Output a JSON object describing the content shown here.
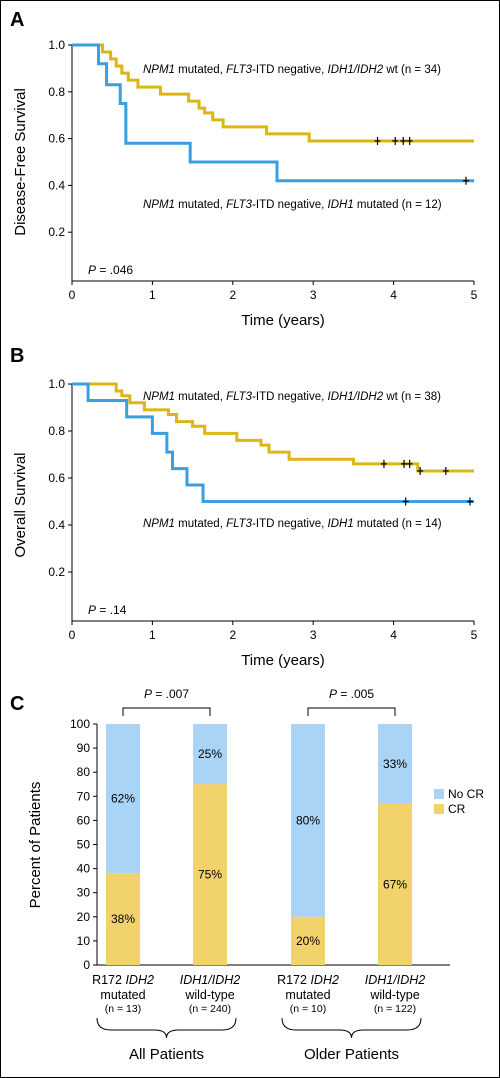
{
  "panels": {
    "a": {
      "letter": "A"
    },
    "b": {
      "letter": "B"
    },
    "c": {
      "letter": "C"
    }
  },
  "chart_data": [
    {
      "type": "line",
      "step": true,
      "ylabel": "Disease-Free Survival",
      "xlabel": "Time (years)",
      "xlim": [
        0,
        5
      ],
      "ylim": [
        0,
        1.0
      ],
      "x_ticks": [
        0,
        1,
        2,
        3,
        4,
        5
      ],
      "y_ticks": [
        0.2,
        0.4,
        0.6,
        0.8,
        1.0
      ],
      "y_tick_labels": [
        "0.2",
        "0.4",
        "0.6",
        "0.8",
        "1.0"
      ],
      "p_value": {
        "label": "P",
        "text": " = .046"
      },
      "series": [
        {
          "color": "#dcb714",
          "annotation": [
            [
              "NPM1",
              true
            ],
            [
              " mutated, ",
              false
            ],
            [
              "FLT3",
              true
            ],
            [
              "-ITD negative, ",
              false
            ],
            [
              "IDH1/IDH2",
              true
            ],
            [
              " wt (n = 34)",
              false
            ]
          ],
          "points": [
            [
              0,
              1.0
            ],
            [
              0.38,
              0.97
            ],
            [
              0.48,
              0.94
            ],
            [
              0.55,
              0.91
            ],
            [
              0.62,
              0.88
            ],
            [
              0.7,
              0.85
            ],
            [
              0.82,
              0.82
            ],
            [
              1.1,
              0.79
            ],
            [
              1.45,
              0.76
            ],
            [
              1.58,
              0.73
            ],
            [
              1.65,
              0.71
            ],
            [
              1.75,
              0.68
            ],
            [
              1.88,
              0.65
            ],
            [
              2.42,
              0.62
            ],
            [
              2.95,
              0.59
            ],
            [
              5.0,
              0.59
            ]
          ],
          "censored": [
            3.8,
            4.02,
            4.12,
            4.2
          ]
        },
        {
          "color": "#3a9fe0",
          "annotation": [
            [
              "NPM1",
              true
            ],
            [
              " mutated, ",
              false
            ],
            [
              "FLT3",
              true
            ],
            [
              "-ITD negative, ",
              false
            ],
            [
              "IDH1",
              true
            ],
            [
              " mutated (n = 12)",
              false
            ]
          ],
          "points": [
            [
              0,
              1.0
            ],
            [
              0.33,
              0.92
            ],
            [
              0.43,
              0.83
            ],
            [
              0.6,
              0.75
            ],
            [
              0.67,
              0.58
            ],
            [
              1.47,
              0.5
            ],
            [
              2.55,
              0.42
            ],
            [
              5.0,
              0.42
            ]
          ],
          "censored": [
            4.9
          ]
        }
      ]
    },
    {
      "type": "line",
      "step": true,
      "ylabel": "Overall Survival",
      "xlabel": "Time (years)",
      "xlim": [
        0,
        5
      ],
      "ylim": [
        0,
        1.0
      ],
      "x_ticks": [
        0,
        1,
        2,
        3,
        4,
        5
      ],
      "y_ticks": [
        0.2,
        0.4,
        0.6,
        0.8,
        1.0
      ],
      "y_tick_labels": [
        "0.2",
        "0.4",
        "0.6",
        "0.8",
        "1.0"
      ],
      "p_value": {
        "label": "P",
        "text": " = .14"
      },
      "series": [
        {
          "color": "#dcb714",
          "annotation": [
            [
              "NPM1",
              true
            ],
            [
              " mutated, ",
              false
            ],
            [
              "FLT3",
              true
            ],
            [
              "-ITD negative, ",
              false
            ],
            [
              "IDH1/IDH2",
              true
            ],
            [
              " wt (n = 38)",
              false
            ]
          ],
          "points": [
            [
              0,
              1.0
            ],
            [
              0.55,
              0.97
            ],
            [
              0.62,
              0.95
            ],
            [
              0.72,
              0.92
            ],
            [
              0.9,
              0.89
            ],
            [
              1.2,
              0.87
            ],
            [
              1.3,
              0.84
            ],
            [
              1.5,
              0.82
            ],
            [
              1.65,
              0.79
            ],
            [
              2.05,
              0.76
            ],
            [
              2.35,
              0.74
            ],
            [
              2.45,
              0.71
            ],
            [
              2.7,
              0.68
            ],
            [
              3.5,
              0.66
            ],
            [
              4.3,
              0.63
            ],
            [
              5.0,
              0.63
            ]
          ],
          "censored": [
            3.88,
            4.13,
            4.2,
            4.33,
            4.65
          ]
        },
        {
          "color": "#3a9fe0",
          "annotation": [
            [
              "NPM1",
              true
            ],
            [
              " mutated, ",
              false
            ],
            [
              "FLT3",
              true
            ],
            [
              "-ITD negative, ",
              false
            ],
            [
              "IDH1",
              true
            ],
            [
              " mutated (n = 14)",
              false
            ]
          ],
          "points": [
            [
              0,
              1.0
            ],
            [
              0.2,
              0.93
            ],
            [
              0.68,
              0.86
            ],
            [
              1.0,
              0.79
            ],
            [
              1.18,
              0.71
            ],
            [
              1.25,
              0.64
            ],
            [
              1.43,
              0.57
            ],
            [
              1.63,
              0.5
            ],
            [
              5.0,
              0.5
            ]
          ],
          "censored": [
            4.15,
            4.95
          ]
        }
      ]
    },
    {
      "type": "bar",
      "stacked": true,
      "ylabel": "Percent of Patients",
      "ylim": [
        0,
        100
      ],
      "y_ticks": [
        0,
        10,
        20,
        30,
        40,
        50,
        60,
        70,
        80,
        90,
        100
      ],
      "legend": {
        "position": "right",
        "entries": [
          {
            "name": "No CR",
            "color": "#a9d4f5"
          },
          {
            "name": "CR",
            "color": "#f2d36b"
          }
        ]
      },
      "bars": [
        {
          "cat": [
            [
              "R172 ",
              false
            ],
            [
              "IDH2",
              true
            ]
          ],
          "cat2": "mutated",
          "n": "(n = 13)",
          "cr": 38,
          "nocr": 62,
          "cr_label": "38%",
          "nocr_label": "62%"
        },
        {
          "cat": [
            [
              "IDH1/IDH2",
              true
            ]
          ],
          "cat2": "wild-type",
          "n": "(n = 240)",
          "cr": 75,
          "nocr": 25,
          "cr_label": "75%",
          "nocr_label": "25%"
        },
        {
          "cat": [
            [
              "R172 ",
              false
            ],
            [
              "IDH2",
              true
            ]
          ],
          "cat2": "mutated",
          "n": "(n = 10)",
          "cr": 20,
          "nocr": 80,
          "cr_label": "20%",
          "nocr_label": "80%"
        },
        {
          "cat": [
            [
              "IDH1/IDH2",
              true
            ]
          ],
          "cat2": "wild-type",
          "n": "(n = 122)",
          "cr": 67,
          "nocr": 33,
          "cr_label": "67%",
          "nocr_label": "33%"
        }
      ],
      "comparisons": [
        {
          "label": "P",
          "text": " = .007",
          "group": "All Patients"
        },
        {
          "label": "P",
          "text": " = .005",
          "group": "Older Patients"
        }
      ]
    }
  ]
}
